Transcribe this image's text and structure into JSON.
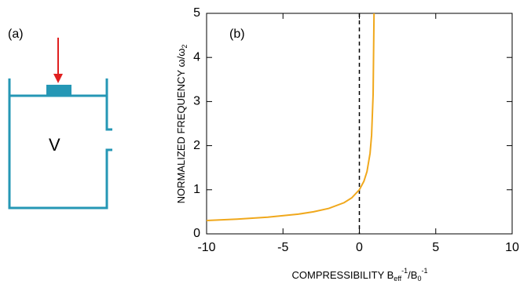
{
  "panel_a": {
    "label": "(a)",
    "volume_label": "V"
  },
  "chart_data": {
    "type": "line",
    "panel_label": "(b)",
    "ylabel_parts": [
      "NORMALIZED FREQUENCY ω/ω",
      "2"
    ],
    "xlabel_parts": [
      "COMPRESSIBILITY  B",
      "eff",
      "-1",
      "/B",
      "0",
      "-1"
    ],
    "x": [
      -10,
      -8,
      -6,
      -4,
      -3,
      -2,
      -1,
      -0.5,
      0,
      0.3,
      0.5,
      0.7,
      0.8,
      0.9,
      0.96
    ],
    "series": [
      {
        "color": "#f0a81c",
        "values": [
          0.302,
          0.333,
          0.378,
          0.447,
          0.5,
          0.577,
          0.707,
          0.816,
          1,
          1.195,
          1.414,
          1.826,
          2.236,
          3.162,
          5
        ]
      }
    ],
    "xlim": [
      -10,
      10
    ],
    "xticks": [
      -10,
      -5,
      0,
      5,
      10
    ],
    "ylim": [
      0,
      5
    ],
    "yticks": [
      0,
      1,
      2,
      3,
      4,
      5
    ],
    "vline": 0
  }
}
